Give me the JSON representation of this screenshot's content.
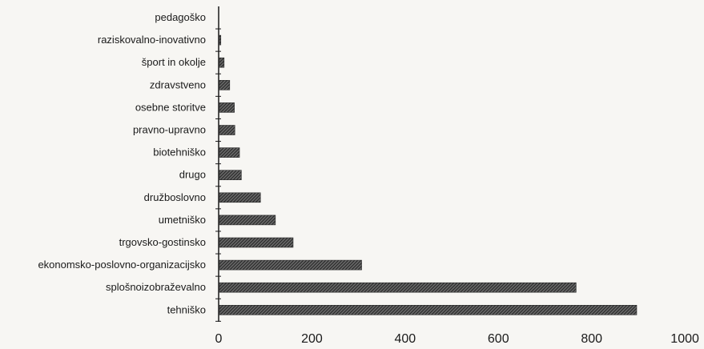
{
  "chart_data": {
    "type": "bar",
    "orientation": "horizontal",
    "categories": [
      "pedagoško",
      "raziskovalno-inovativno",
      "šport in okolje",
      "zdravstveno",
      "osebne storitve",
      "pravno-upravno",
      "biotehniško",
      "drugo",
      "družboslovno",
      "umetniško",
      "trgovsko-gostinsko",
      "ekonomsko-poslovno-organizacijsko",
      "splošnoizobraževalno",
      "tehniško"
    ],
    "values": [
      0,
      3,
      10,
      22,
      32,
      33,
      43,
      47,
      88,
      120,
      158,
      305,
      765,
      895
    ],
    "xlim": [
      0,
      1000
    ],
    "xticks": [
      "0",
      "200",
      "400",
      "600",
      "800",
      "1000"
    ],
    "title": "",
    "xlabel": "",
    "ylabel": "",
    "grid": false,
    "legend": "none",
    "bar_color": "#4a4a4a",
    "bar_pattern": "hatched"
  }
}
